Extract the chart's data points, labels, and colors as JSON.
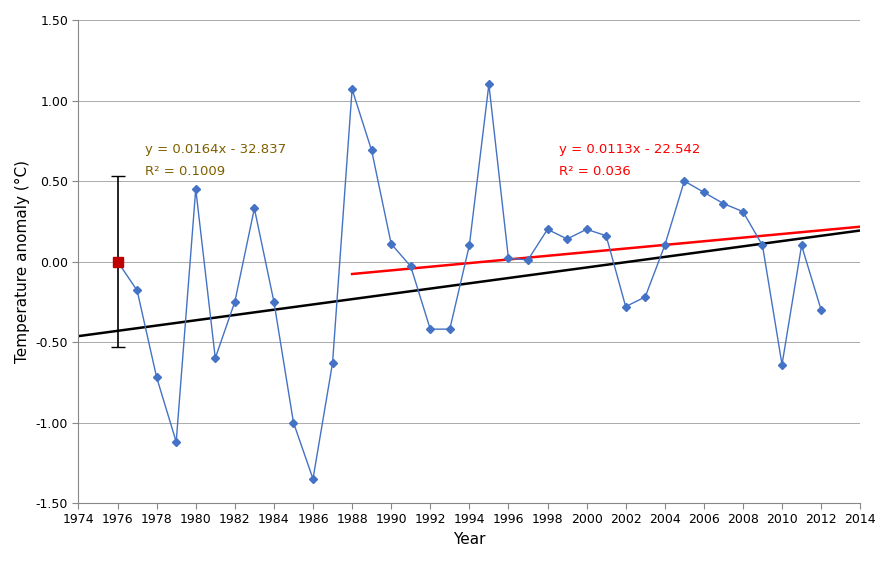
{
  "years": [
    1976,
    1977,
    1978,
    1979,
    1980,
    1981,
    1982,
    1983,
    1984,
    1985,
    1986,
    1987,
    1988,
    1989,
    1990,
    1991,
    1992,
    1993,
    1994,
    1995,
    1996,
    1997,
    1998,
    1999,
    2000,
    2001,
    2002,
    2003,
    2004,
    2005,
    2006,
    2007,
    2008,
    2009,
    2010,
    2011,
    2012
  ],
  "anomalies": [
    0.0,
    -0.18,
    -0.72,
    -1.12,
    0.45,
    -0.6,
    -0.25,
    0.33,
    -0.25,
    -1.0,
    -1.35,
    -0.63,
    1.07,
    0.69,
    0.11,
    -0.03,
    -0.42,
    -0.42,
    0.1,
    1.1,
    0.02,
    0.01,
    0.2,
    0.14,
    0.2,
    0.16,
    -0.28,
    -0.22,
    0.1,
    0.5,
    0.43,
    0.36,
    0.31,
    0.1,
    -0.64,
    0.1,
    -0.3
  ],
  "std_dev": 0.53,
  "trend1_slope": 0.0164,
  "trend1_intercept": -32.837,
  "trend2_slope": 0.0113,
  "trend2_intercept": -22.542,
  "trend1_x_start": 1974,
  "trend1_x_end": 2014,
  "trend2_x_start": 1988,
  "trend2_x_end": 2014,
  "trend1_label_line1": "y = 0.0164x - 32.837",
  "trend1_label_line2": "R² = 0.1009",
  "trend2_label_line1": "y = 0.0113x - 22.542",
  "trend2_label_line2": "R² = 0.036",
  "ref_point_year": 1976,
  "ref_point_value": 0.0,
  "error_bar_value": 0.53,
  "line_color": "#4472C4",
  "marker_color": "#4472C4",
  "trend1_color": "#000000",
  "trend2_color": "#FF0000",
  "ref_color": "#C00000",
  "trend1_text_color": "#7F6000",
  "xlabel": "Year",
  "ylabel": "Temperature anomaly (°C)",
  "xlim": [
    1974,
    2014
  ],
  "ylim": [
    -1.5,
    1.5
  ],
  "xticks": [
    1974,
    1976,
    1978,
    1980,
    1982,
    1984,
    1986,
    1988,
    1990,
    1992,
    1994,
    1996,
    1998,
    2000,
    2002,
    2004,
    2006,
    2008,
    2010,
    2012,
    2014
  ],
  "yticks": [
    -1.5,
    -1.0,
    -0.5,
    0.0,
    0.5,
    1.0,
    1.5
  ],
  "figsize": [
    8.91,
    5.62
  ],
  "dpi": 100
}
